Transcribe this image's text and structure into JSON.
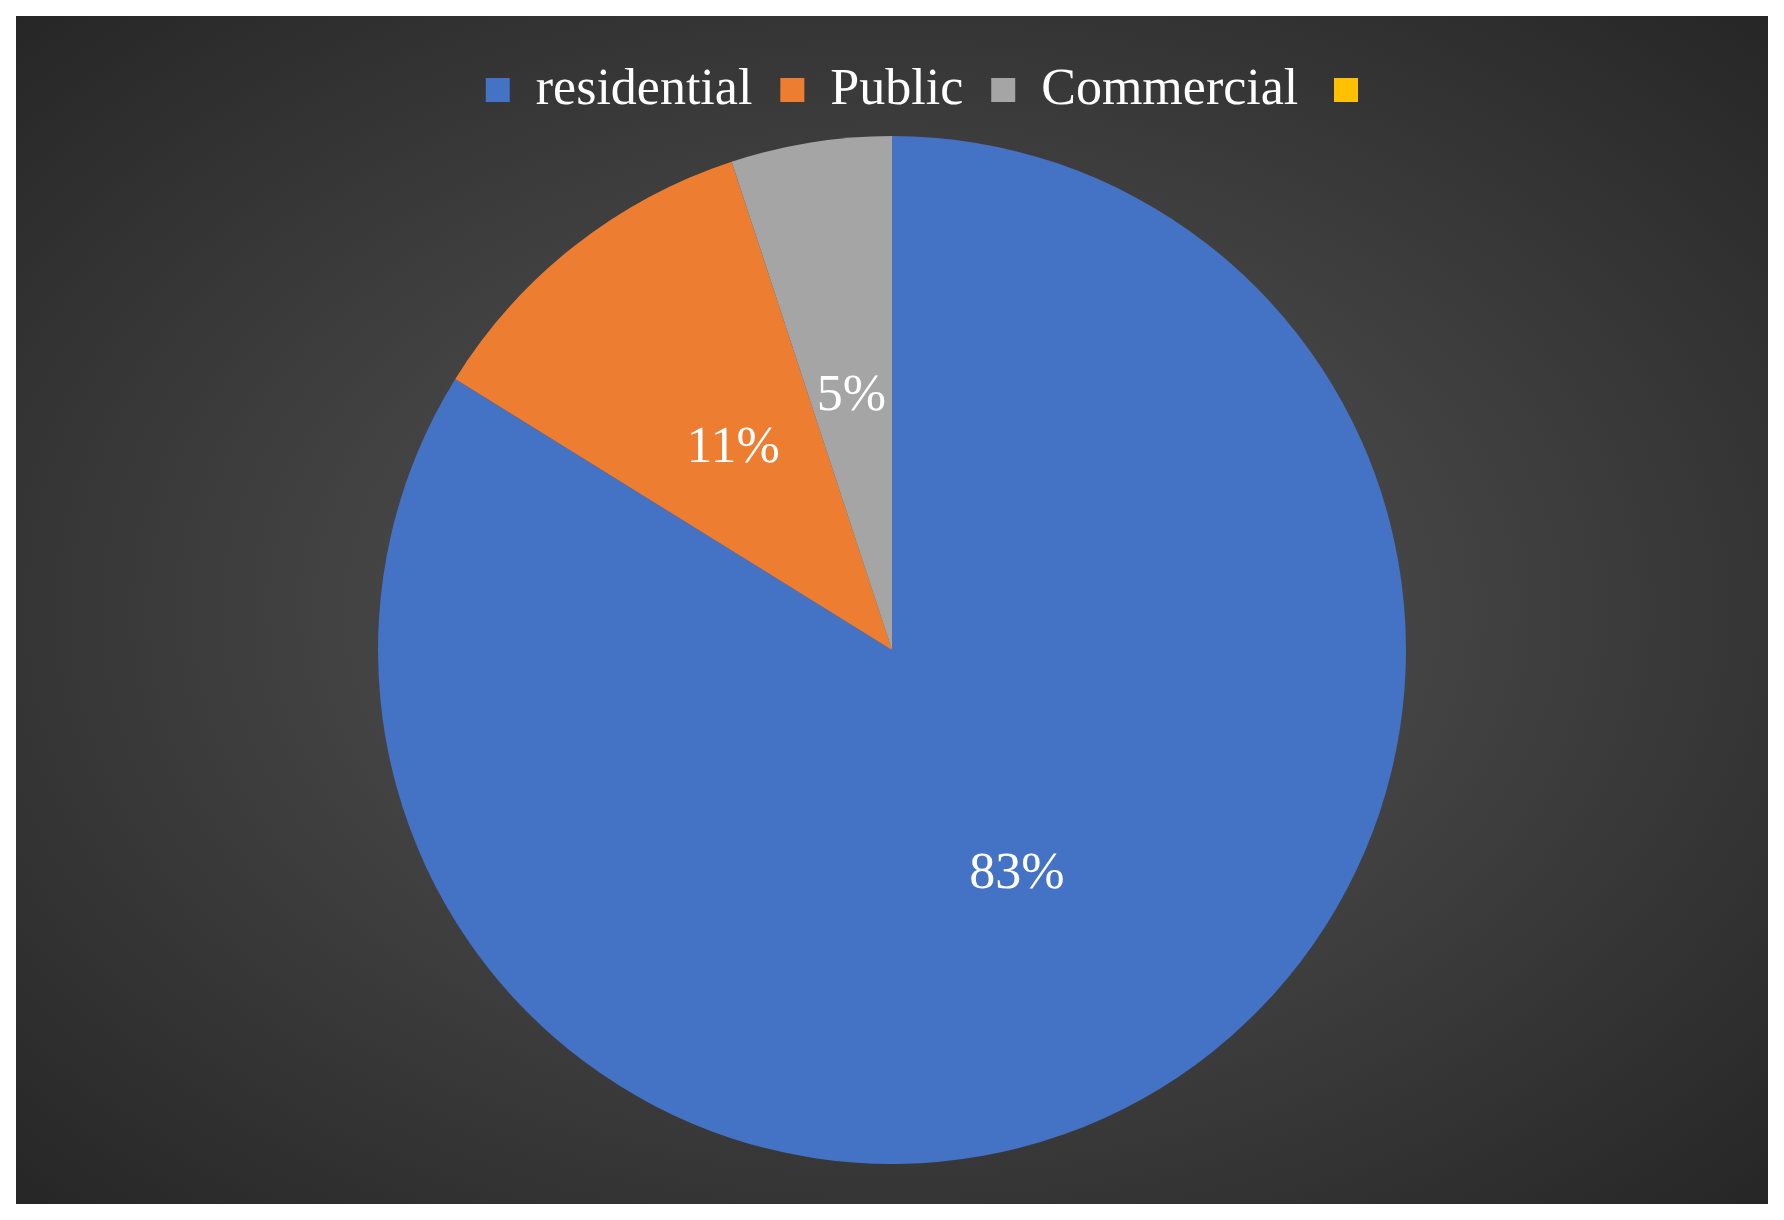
{
  "chart_data": {
    "type": "pie",
    "categories": [
      "residential",
      "Public",
      "Commercial"
    ],
    "values": [
      83,
      11,
      5
    ],
    "colors": [
      "#4472c4",
      "#ed7d31",
      "#a5a5a5"
    ],
    "value_labels": [
      "83%",
      "11%",
      "5%"
    ],
    "legend": "top"
  }
}
